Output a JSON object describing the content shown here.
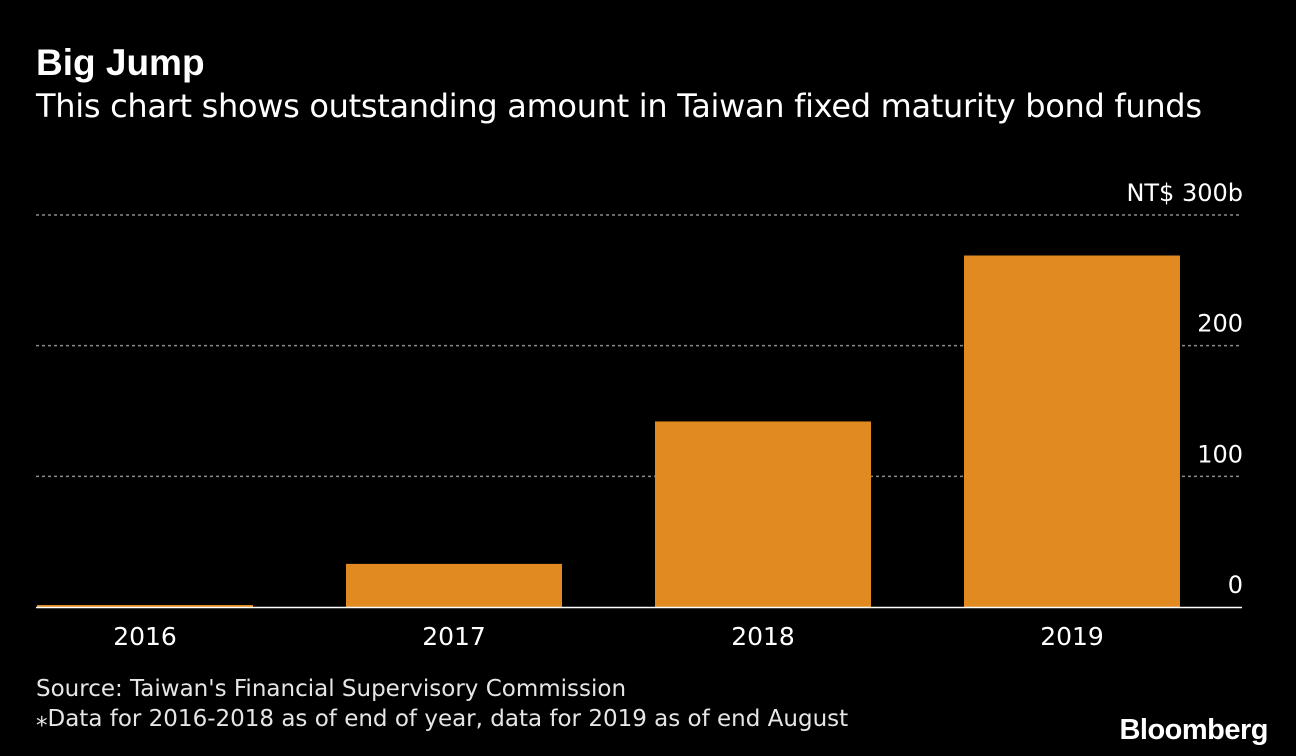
{
  "title": "Big Jump",
  "subtitle": "This chart shows outstanding amount in Taiwan fixed maturity bond funds",
  "source": "Source: Taiwan's Financial Supervisory Commission",
  "footnote": "⁎Data for 2016-2018 as of end of year, data for 2019 as of end August",
  "brand": "Bloomberg",
  "colors": {
    "background": "#000000",
    "bar": "#e08a20",
    "grid": "#8a8a8a",
    "text": "#ffffff",
    "baseline": "#ffffff"
  },
  "chart_data": {
    "type": "bar",
    "categories": [
      "2016",
      "2017",
      "2018",
      "2019"
    ],
    "values": [
      1,
      33,
      142,
      269
    ],
    "ylim": [
      0,
      300
    ],
    "yticks": [
      0,
      100,
      200,
      300
    ],
    "ytick_labels": [
      "0",
      "100",
      "200",
      "NT$ 300b"
    ],
    "ylabel": "",
    "xlabel": "",
    "grid": true
  }
}
